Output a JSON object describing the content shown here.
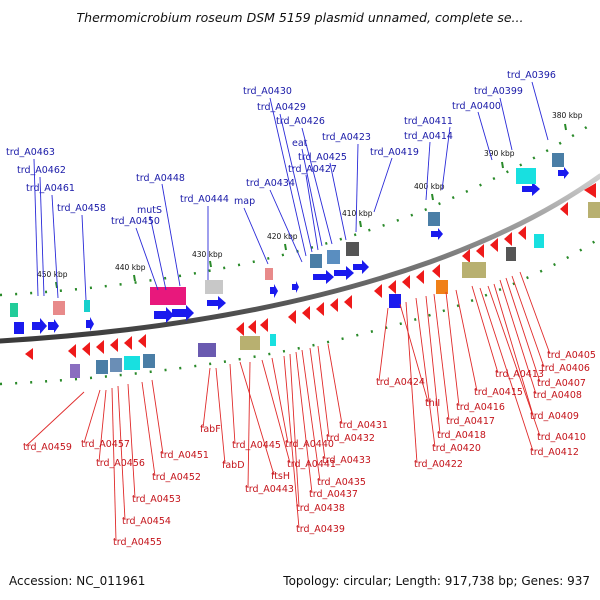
{
  "title": "Thermomicrobium roseum DSM 5159 plasmid unnamed, complete se...",
  "footer": {
    "accession": "Accession: NC_011961",
    "summary": "Topology: circular; Length: 917,738 bp; Genes: 937"
  },
  "ticks": [
    "380 kbp",
    "390 kbp",
    "400 kbp",
    "410 kbp",
    "420 kbp",
    "430 kbp",
    "440 kbp",
    "450 kbp"
  ],
  "colors": {
    "forward_cds": "#1a1aee",
    "reverse_cds": "#ee1a1a",
    "backbone": "#888888",
    "tick_dots": "#2a8a2a",
    "label_top": "#1a1aa8",
    "label_bottom": "#c4141b"
  },
  "top_labels": [
    "trd_A0396",
    "trd_A0399",
    "trd_A0400",
    "trd_A0411",
    "trd_A0414",
    "trd_A0419",
    "trd_A0423",
    "trd_A0425",
    "trd_A0426",
    "eat",
    "trd_A0427",
    "trd_A0429",
    "trd_A0430",
    "trd_A0434",
    "map",
    "trd_A0444",
    "trd_A0448",
    "mutS",
    "trd_A0450",
    "trd_A0458",
    "trd_A0461",
    "trd_A0462",
    "trd_A0463"
  ],
  "bottom_labels": [
    "trd_A0405",
    "trd_A0406",
    "trd_A0407",
    "trd_A0408",
    "trd_A0409",
    "trd_A0410",
    "trd_A0412",
    "trd_A0413",
    "trd_A0415",
    "trd_A0416",
    "trd_A0417",
    "trd_A0418",
    "trd_A0420",
    "trd_A0422",
    "thiI",
    "trd_A0424",
    "trd_A0431",
    "trd_A0432",
    "trd_A0433",
    "trd_A0435",
    "trd_A0437",
    "trd_A0438",
    "trd_A0439",
    "trd_A0440",
    "trd_A0441",
    "trd_A0443",
    "ftsH",
    "trd_A0445",
    "fabF",
    "fabD",
    "trd_A0451",
    "trd_A0452",
    "trd_A0453",
    "trd_A0454",
    "trd_A0455",
    "trd_A0456",
    "trd_A0457",
    "trd_A0459"
  ]
}
